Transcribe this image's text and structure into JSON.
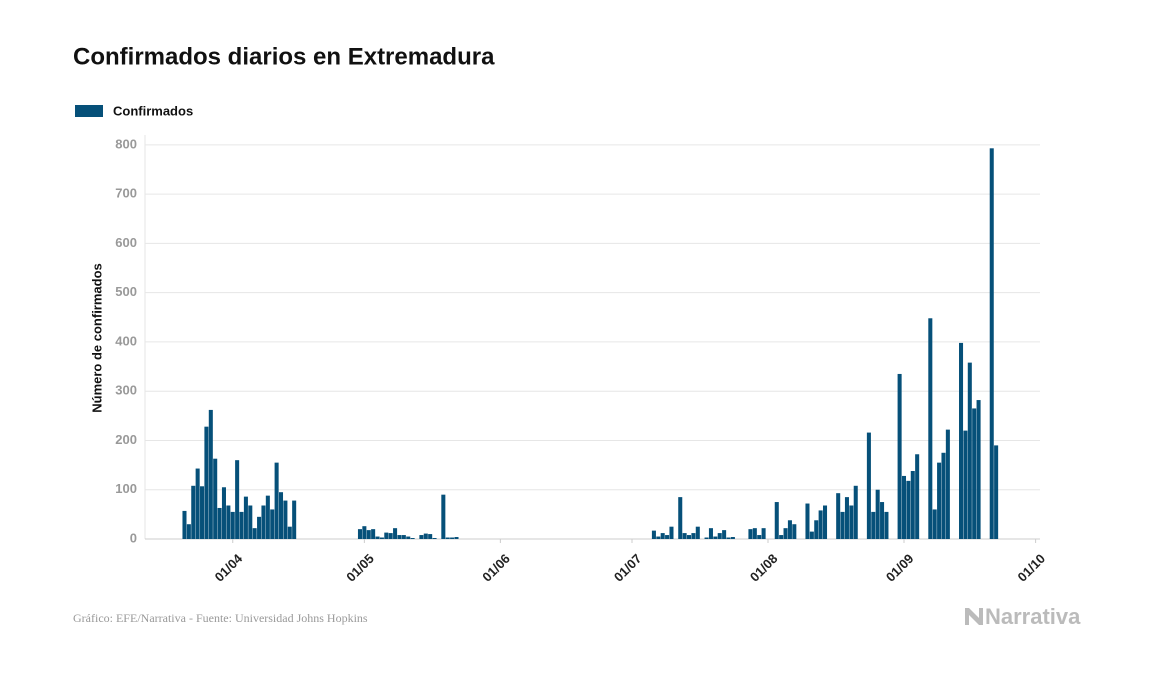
{
  "chart_data": {
    "type": "bar",
    "title": "Confirmados diarios en Extremadura",
    "y_label": "Número de confirmados",
    "source": "Gráfico: EFE/Narrativa - Fuente: Universidad Johns Hopkins",
    "brand": "Narrativa",
    "x": [
      "21/03",
      "22/03",
      "23/03",
      "24/03",
      "25/03",
      "26/03",
      "27/03",
      "28/03",
      "29/03",
      "30/03",
      "31/03",
      "01/04",
      "02/04",
      "03/04",
      "04/04",
      "05/04",
      "06/04",
      "07/04",
      "08/04",
      "09/04",
      "10/04",
      "11/04",
      "12/04",
      "13/04",
      "14/04",
      "15/04",
      "30/04",
      "01/05",
      "02/05",
      "03/05",
      "04/05",
      "05/05",
      "06/05",
      "07/05",
      "08/05",
      "09/05",
      "10/05",
      "11/05",
      "12/05",
      "14/05",
      "15/05",
      "16/05",
      "17/05",
      "19/05",
      "20/05",
      "21/05",
      "22/05",
      "06/07",
      "07/07",
      "08/07",
      "09/07",
      "10/07",
      "12/07",
      "13/07",
      "14/07",
      "15/07",
      "16/07",
      "18/07",
      "19/07",
      "20/07",
      "21/07",
      "22/07",
      "23/07",
      "24/07",
      "28/07",
      "29/07",
      "30/07",
      "31/07",
      "03/08",
      "04/08",
      "05/08",
      "06/08",
      "07/08",
      "10/08",
      "11/08",
      "12/08",
      "13/08",
      "14/08",
      "17/08",
      "18/08",
      "19/08",
      "20/08",
      "21/08",
      "24/08",
      "25/08",
      "26/08",
      "27/08",
      "28/08",
      "31/08",
      "01/09",
      "02/09",
      "03/09",
      "04/09",
      "07/09",
      "08/09",
      "09/09",
      "10/09",
      "11/09",
      "14/09",
      "15/09",
      "16/09",
      "17/09",
      "18/09",
      "21/09",
      "22/09"
    ],
    "series": [
      {
        "name": "Confirmados",
        "color": "#065079",
        "values": [
          57,
          30,
          108,
          143,
          107,
          228,
          262,
          163,
          63,
          105,
          68,
          55,
          160,
          55,
          86,
          68,
          22,
          45,
          68,
          88,
          60,
          155,
          95,
          78,
          25,
          78,
          20,
          26,
          18,
          20,
          5,
          3,
          13,
          12,
          22,
          8,
          8,
          5,
          2,
          8,
          11,
          10,
          2,
          90,
          3,
          3,
          4,
          17,
          5,
          12,
          8,
          25,
          85,
          12,
          8,
          12,
          25,
          3,
          22,
          5,
          12,
          18,
          3,
          4,
          20,
          22,
          8,
          22,
          75,
          8,
          22,
          38,
          30,
          72,
          15,
          38,
          58,
          68,
          93,
          55,
          85,
          68,
          108,
          216,
          55,
          100,
          75,
          55,
          335,
          128,
          118,
          138,
          172,
          448,
          60,
          155,
          175,
          222,
          398,
          220,
          358,
          265,
          282,
          793,
          190
        ]
      }
    ],
    "xlim": [
      "12/03",
      "02/10"
    ],
    "xticks": [
      "01/04",
      "01/05",
      "01/06",
      "01/07",
      "01/08",
      "01/09",
      "01/10"
    ],
    "ylim": [
      0,
      820
    ],
    "yticks": [
      0,
      100,
      200,
      300,
      400,
      500,
      600,
      700,
      800
    ],
    "grid": true,
    "legend": "top-left"
  }
}
